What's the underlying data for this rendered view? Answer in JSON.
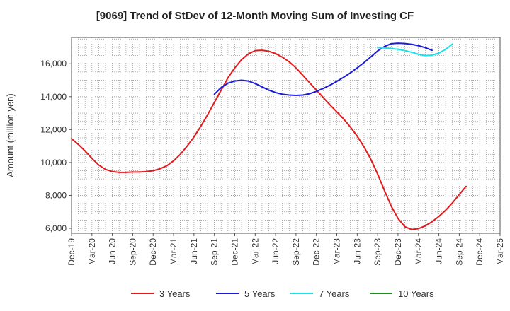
{
  "chart_data": {
    "type": "line",
    "title": "[9069]  Trend of StDev of 12-Month Moving Sum of Investing CF",
    "xlabel": "",
    "ylabel": "Amount (million yen)",
    "ylim": [
      5700,
      17600
    ],
    "y_ticks": [
      6000,
      8000,
      10000,
      12000,
      14000,
      16000
    ],
    "y_tick_labels": [
      "6,000",
      "8,000",
      "10,000",
      "12,000",
      "14,000",
      "16,000"
    ],
    "x_tick_labels": [
      "Dec-19",
      "Mar-20",
      "Jun-20",
      "Sep-20",
      "Dec-20",
      "Mar-21",
      "Jun-21",
      "Sep-21",
      "Dec-21",
      "Mar-22",
      "Jun-22",
      "Sep-22",
      "Dec-22",
      "Mar-23",
      "Jun-23",
      "Sep-23",
      "Dec-23",
      "Mar-24",
      "Jun-24",
      "Sep-24",
      "Dec-24",
      "Mar-25"
    ],
    "x_unit": "month index from Dec-19",
    "grid": true,
    "legend_position": "bottom",
    "series": [
      {
        "name": "3 Years",
        "color": "#e31a1c",
        "points": [
          [
            0,
            11450
          ],
          [
            1,
            11100
          ],
          [
            2,
            10700
          ],
          [
            3,
            10250
          ],
          [
            4,
            9850
          ],
          [
            5,
            9580
          ],
          [
            6,
            9450
          ],
          [
            7,
            9400
          ],
          [
            8,
            9400
          ],
          [
            9,
            9420
          ],
          [
            10,
            9420
          ],
          [
            11,
            9450
          ],
          [
            12,
            9500
          ],
          [
            13,
            9620
          ],
          [
            14,
            9800
          ],
          [
            15,
            10100
          ],
          [
            16,
            10500
          ],
          [
            17,
            11000
          ],
          [
            18,
            11550
          ],
          [
            19,
            12200
          ],
          [
            20,
            12900
          ],
          [
            21,
            13650
          ],
          [
            22,
            14400
          ],
          [
            23,
            15150
          ],
          [
            24,
            15750
          ],
          [
            25,
            16250
          ],
          [
            26,
            16600
          ],
          [
            27,
            16800
          ],
          [
            28,
            16820
          ],
          [
            29,
            16760
          ],
          [
            30,
            16620
          ],
          [
            31,
            16400
          ],
          [
            32,
            16120
          ],
          [
            33,
            15750
          ],
          [
            34,
            15300
          ],
          [
            35,
            14850
          ],
          [
            36,
            14400
          ],
          [
            37,
            13950
          ],
          [
            38,
            13500
          ],
          [
            39,
            13080
          ],
          [
            40,
            12650
          ],
          [
            41,
            12150
          ],
          [
            42,
            11600
          ],
          [
            43,
            10950
          ],
          [
            44,
            10200
          ],
          [
            45,
            9300
          ],
          [
            46,
            8300
          ],
          [
            47,
            7350
          ],
          [
            48,
            6600
          ],
          [
            49,
            6100
          ],
          [
            50,
            5930
          ],
          [
            51,
            5980
          ],
          [
            52,
            6150
          ],
          [
            53,
            6400
          ],
          [
            54,
            6720
          ],
          [
            55,
            7100
          ],
          [
            56,
            7550
          ],
          [
            57,
            8050
          ],
          [
            58,
            8550
          ]
        ]
      },
      {
        "name": "5 Years",
        "color": "#1a1adb",
        "points": [
          [
            21,
            14150
          ],
          [
            22,
            14550
          ],
          [
            23,
            14820
          ],
          [
            24,
            14950
          ],
          [
            25,
            15000
          ],
          [
            26,
            14950
          ],
          [
            27,
            14800
          ],
          [
            28,
            14600
          ],
          [
            29,
            14400
          ],
          [
            30,
            14250
          ],
          [
            31,
            14150
          ],
          [
            32,
            14100
          ],
          [
            33,
            14080
          ],
          [
            34,
            14100
          ],
          [
            35,
            14180
          ],
          [
            36,
            14320
          ],
          [
            37,
            14500
          ],
          [
            38,
            14700
          ],
          [
            39,
            14930
          ],
          [
            40,
            15180
          ],
          [
            41,
            15450
          ],
          [
            42,
            15750
          ],
          [
            43,
            16070
          ],
          [
            44,
            16420
          ],
          [
            45,
            16780
          ],
          [
            46,
            17050
          ],
          [
            47,
            17220
          ],
          [
            48,
            17250
          ],
          [
            49,
            17230
          ],
          [
            50,
            17180
          ],
          [
            51,
            17100
          ],
          [
            52,
            16980
          ],
          [
            53,
            16820
          ]
        ]
      },
      {
        "name": "7 Years",
        "color": "#19e3e8",
        "points": [
          [
            45,
            16980
          ],
          [
            46,
            16960
          ],
          [
            47,
            16930
          ],
          [
            48,
            16880
          ],
          [
            49,
            16800
          ],
          [
            50,
            16700
          ],
          [
            51,
            16580
          ],
          [
            52,
            16500
          ],
          [
            53,
            16520
          ],
          [
            54,
            16650
          ],
          [
            55,
            16880
          ],
          [
            56,
            17200
          ]
        ]
      },
      {
        "name": "10 Years",
        "color": "#1e8f1e",
        "points": []
      }
    ]
  }
}
